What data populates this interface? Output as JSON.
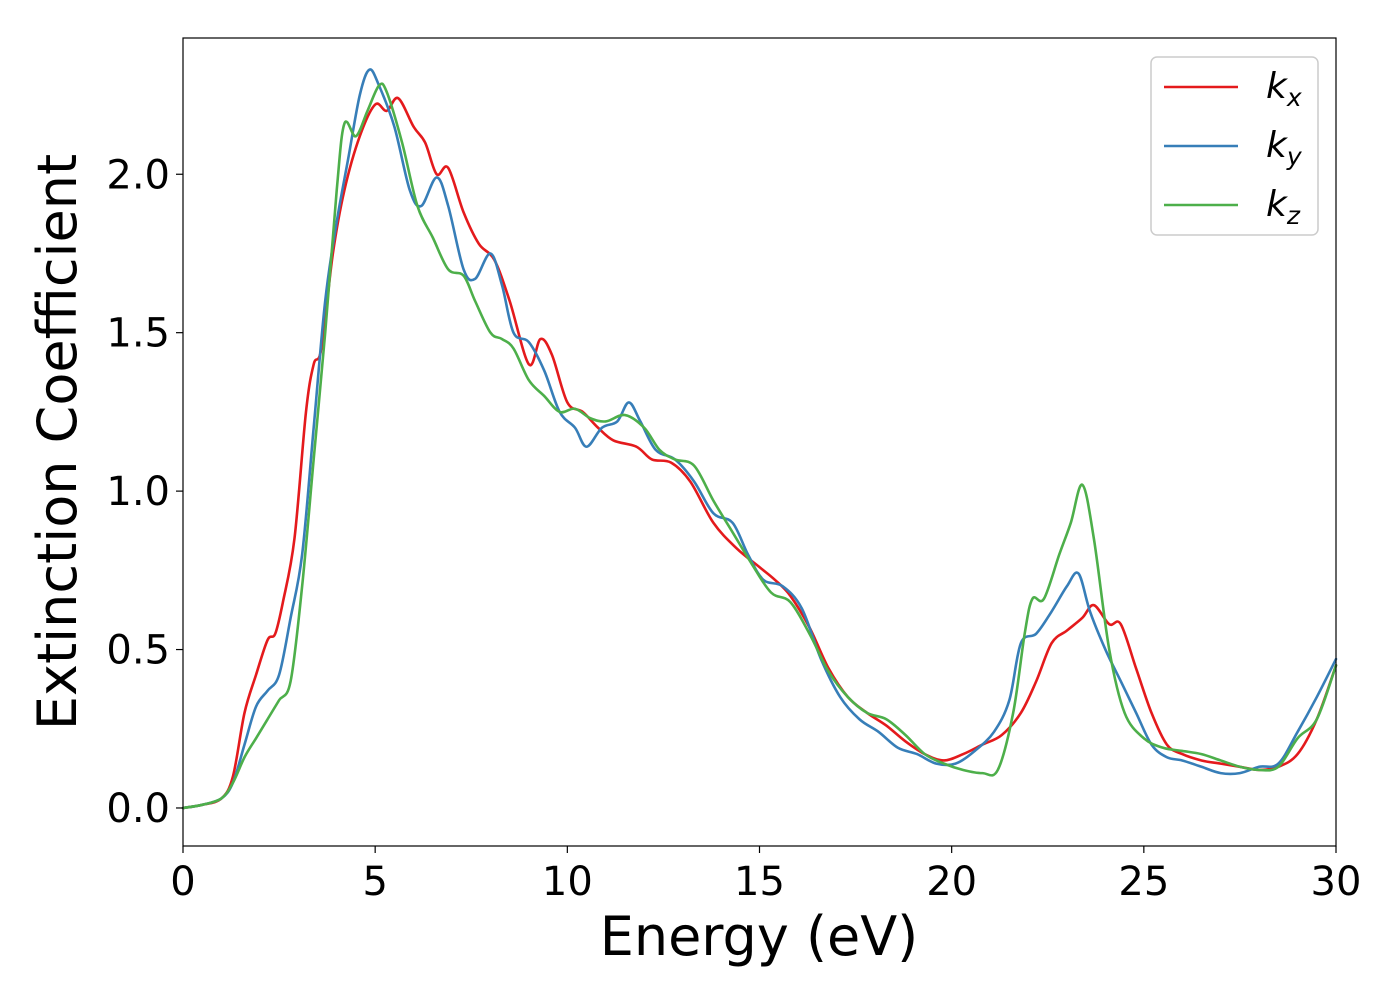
{
  "chart_data": {
    "type": "line",
    "xlabel": "Energy (eV)",
    "ylabel": "Extinction Coefficient",
    "xlim": [
      0,
      30
    ],
    "ylim": [
      -0.12,
      2.43
    ],
    "xticks": [
      0,
      5,
      10,
      15,
      20,
      25,
      30
    ],
    "xtick_labels": [
      "0",
      "5",
      "10",
      "15",
      "20",
      "25",
      "30"
    ],
    "yticks": [
      0.0,
      0.5,
      1.0,
      1.5,
      2.0
    ],
    "ytick_labels": [
      "0.0",
      "0.5",
      "1.0",
      "1.5",
      "2.0"
    ],
    "grid": false,
    "legend_position": "top-right",
    "series": [
      {
        "name": "k_x",
        "label_main": "k",
        "label_sub": "x",
        "color": "#e41a1c",
        "x": [
          0,
          0.5,
          1.0,
          1.3,
          1.6,
          1.9,
          2.2,
          2.4,
          2.6,
          2.9,
          3.2,
          3.4,
          3.6,
          3.9,
          4.2,
          4.6,
          5.0,
          5.3,
          5.6,
          6.0,
          6.3,
          6.6,
          6.9,
          7.3,
          7.7,
          8.1,
          8.5,
          9.0,
          9.3,
          9.6,
          10.0,
          10.4,
          10.8,
          11.2,
          11.8,
          12.2,
          12.7,
          13.2,
          13.8,
          14.4,
          15.0,
          15.4,
          15.8,
          16.3,
          16.8,
          17.3,
          17.8,
          18.3,
          18.8,
          19.3,
          19.8,
          20.3,
          20.8,
          21.3,
          21.8,
          22.2,
          22.6,
          23.0,
          23.4,
          23.7,
          24.1,
          24.4,
          24.8,
          25.2,
          25.6,
          26.0,
          26.5,
          27.0,
          27.5,
          28.0,
          28.5,
          29.0,
          29.5,
          30.0
        ],
        "y": [
          0.0,
          0.01,
          0.03,
          0.1,
          0.3,
          0.42,
          0.53,
          0.55,
          0.65,
          0.85,
          1.25,
          1.4,
          1.45,
          1.75,
          1.95,
          2.12,
          2.22,
          2.2,
          2.24,
          2.15,
          2.1,
          2.0,
          2.02,
          1.88,
          1.78,
          1.73,
          1.6,
          1.4,
          1.48,
          1.43,
          1.28,
          1.25,
          1.2,
          1.16,
          1.14,
          1.1,
          1.09,
          1.03,
          0.9,
          0.82,
          0.76,
          0.72,
          0.67,
          0.57,
          0.44,
          0.35,
          0.3,
          0.26,
          0.21,
          0.17,
          0.15,
          0.17,
          0.2,
          0.23,
          0.3,
          0.4,
          0.52,
          0.56,
          0.6,
          0.64,
          0.58,
          0.58,
          0.44,
          0.3,
          0.2,
          0.17,
          0.15,
          0.14,
          0.13,
          0.12,
          0.13,
          0.17,
          0.28,
          0.45
        ]
      },
      {
        "name": "k_y",
        "label_main": "k",
        "label_sub": "y",
        "color": "#377eb8",
        "x": [
          0,
          0.5,
          1.0,
          1.3,
          1.6,
          1.9,
          2.2,
          2.5,
          2.8,
          3.1,
          3.4,
          3.7,
          4.0,
          4.3,
          4.6,
          4.85,
          5.1,
          5.5,
          5.9,
          6.2,
          6.6,
          6.9,
          7.3,
          7.6,
          8.0,
          8.3,
          8.6,
          9.0,
          9.4,
          9.8,
          10.2,
          10.5,
          10.9,
          11.3,
          11.6,
          11.9,
          12.3,
          12.8,
          13.3,
          13.8,
          14.3,
          14.7,
          15.1,
          15.6,
          16.1,
          16.6,
          17.1,
          17.6,
          18.1,
          18.6,
          19.1,
          19.6,
          20.1,
          20.6,
          21.1,
          21.5,
          21.8,
          22.2,
          22.6,
          23.0,
          23.3,
          23.6,
          24.0,
          24.4,
          24.8,
          25.2,
          25.6,
          26.0,
          26.5,
          27.0,
          27.5,
          28.0,
          28.5,
          29.0,
          29.5,
          30.0
        ],
        "y": [
          0.0,
          0.01,
          0.03,
          0.08,
          0.2,
          0.32,
          0.37,
          0.42,
          0.6,
          0.8,
          1.2,
          1.6,
          1.85,
          2.05,
          2.25,
          2.33,
          2.28,
          2.15,
          1.95,
          1.9,
          1.99,
          1.9,
          1.7,
          1.67,
          1.75,
          1.65,
          1.5,
          1.47,
          1.38,
          1.25,
          1.2,
          1.14,
          1.2,
          1.22,
          1.28,
          1.22,
          1.13,
          1.1,
          1.03,
          0.93,
          0.9,
          0.8,
          0.72,
          0.7,
          0.63,
          0.47,
          0.35,
          0.28,
          0.24,
          0.19,
          0.17,
          0.14,
          0.14,
          0.18,
          0.24,
          0.34,
          0.52,
          0.55,
          0.62,
          0.7,
          0.74,
          0.62,
          0.5,
          0.4,
          0.3,
          0.2,
          0.16,
          0.15,
          0.13,
          0.11,
          0.11,
          0.13,
          0.14,
          0.24,
          0.35,
          0.47
        ]
      },
      {
        "name": "k_z",
        "label_main": "k",
        "label_sub": "z",
        "color": "#4daf4a",
        "x": [
          0,
          0.5,
          1.0,
          1.3,
          1.6,
          1.9,
          2.2,
          2.5,
          2.8,
          3.1,
          3.4,
          3.7,
          4.0,
          4.2,
          4.5,
          4.8,
          5.1,
          5.3,
          5.7,
          6.1,
          6.5,
          6.9,
          7.3,
          7.6,
          8.0,
          8.3,
          8.6,
          9.0,
          9.4,
          9.8,
          10.2,
          10.6,
          11.0,
          11.5,
          12.0,
          12.4,
          12.8,
          13.3,
          13.8,
          14.3,
          14.8,
          15.3,
          15.8,
          16.3,
          16.8,
          17.3,
          17.8,
          18.3,
          18.8,
          19.3,
          19.8,
          20.3,
          20.8,
          21.2,
          21.6,
          21.9,
          22.1,
          22.4,
          22.8,
          23.1,
          23.4,
          23.7,
          24.1,
          24.5,
          25.0,
          25.5,
          26.0,
          26.5,
          27.0,
          27.5,
          28.0,
          28.5,
          29.0,
          29.5,
          30.0
        ],
        "y": [
          0.0,
          0.01,
          0.03,
          0.08,
          0.16,
          0.22,
          0.28,
          0.34,
          0.4,
          0.7,
          1.1,
          1.5,
          1.95,
          2.16,
          2.12,
          2.2,
          2.28,
          2.26,
          2.1,
          1.9,
          1.8,
          1.7,
          1.68,
          1.6,
          1.5,
          1.48,
          1.45,
          1.35,
          1.3,
          1.25,
          1.26,
          1.23,
          1.22,
          1.24,
          1.2,
          1.13,
          1.1,
          1.08,
          0.97,
          0.87,
          0.77,
          0.68,
          0.65,
          0.55,
          0.43,
          0.35,
          0.3,
          0.28,
          0.23,
          0.17,
          0.14,
          0.12,
          0.11,
          0.12,
          0.3,
          0.55,
          0.66,
          0.66,
          0.8,
          0.9,
          1.02,
          0.85,
          0.5,
          0.3,
          0.22,
          0.19,
          0.18,
          0.17,
          0.15,
          0.13,
          0.12,
          0.13,
          0.22,
          0.28,
          0.45
        ]
      }
    ]
  }
}
